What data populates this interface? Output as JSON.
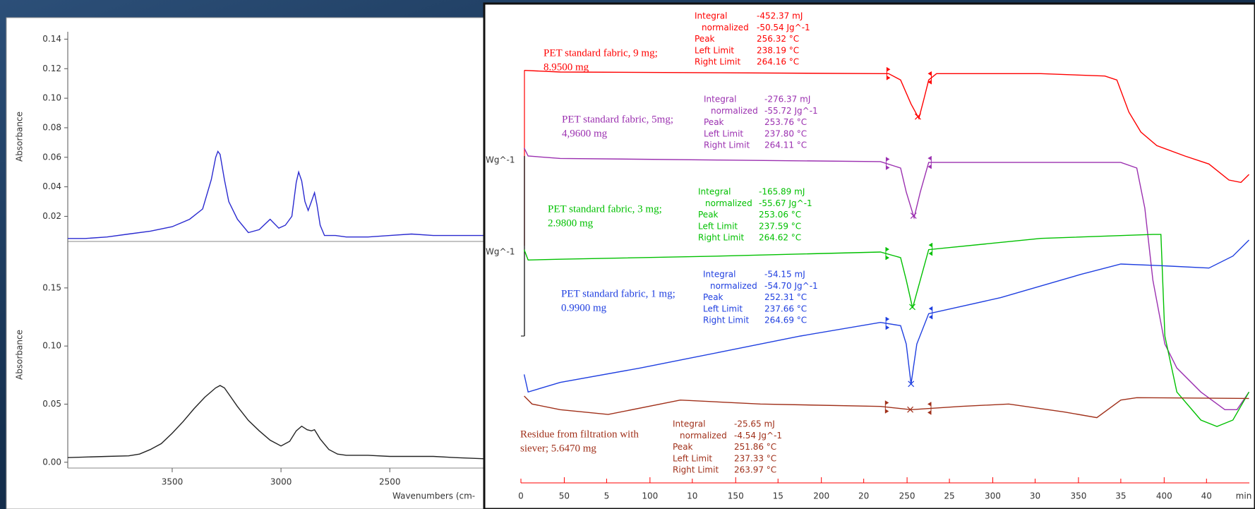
{
  "chart_data": [
    {
      "type": "line",
      "ylabel": "Absorbance",
      "xlim": [
        3980,
        2066
      ],
      "ylim": [
        0.003,
        0.145
      ],
      "yticks": [
        {
          "value": 0.02,
          "label": "0.02"
        },
        {
          "value": 0.04,
          "label": "0.04"
        },
        {
          "value": 0.06,
          "label": "0.06"
        },
        {
          "value": 0.08,
          "label": "0.08"
        },
        {
          "value": 0.1,
          "label": "0.10"
        },
        {
          "value": 0.12,
          "label": "0.12"
        },
        {
          "value": 0.14,
          "label": "0.14"
        }
      ],
      "x": [
        3980,
        3900,
        3800,
        3700,
        3600,
        3500,
        3420,
        3360,
        3320,
        3300,
        3290,
        3280,
        3260,
        3240,
        3200,
        3150,
        3100,
        3050,
        3010,
        2980,
        2950,
        2930,
        2919,
        2905,
        2890,
        2875,
        2860,
        2846,
        2835,
        2820,
        2800,
        2750,
        2700,
        2600,
        2500,
        2400,
        2300,
        2200,
        2066
      ],
      "series": [
        {
          "color": "#2a2ad0",
          "values": [
            0.005,
            0.005,
            0.006,
            0.008,
            0.01,
            0.013,
            0.018,
            0.025,
            0.045,
            0.06,
            0.064,
            0.062,
            0.045,
            0.03,
            0.018,
            0.009,
            0.011,
            0.018,
            0.012,
            0.014,
            0.02,
            0.043,
            0.05,
            0.044,
            0.03,
            0.024,
            0.03,
            0.036,
            0.028,
            0.014,
            0.007,
            0.007,
            0.006,
            0.006,
            0.007,
            0.008,
            0.007,
            0.007,
            0.007
          ]
        }
      ]
    },
    {
      "type": "line",
      "ylabel": "Absorbance",
      "xlabel": "Wavenumbers (cm-",
      "xlim": [
        3980,
        2066
      ],
      "ylim": [
        -0.005,
        0.19
      ],
      "xticks": [
        3500,
        3000,
        2500
      ],
      "yticks": [
        {
          "value": 0,
          "label": "0.00"
        },
        {
          "value": 0.05,
          "label": "0.05"
        },
        {
          "value": 0.1,
          "label": "0.10"
        },
        {
          "value": 0.15,
          "label": "0.15"
        }
      ],
      "x": [
        3980,
        3800,
        3700,
        3650,
        3600,
        3550,
        3500,
        3450,
        3400,
        3350,
        3300,
        3280,
        3260,
        3230,
        3200,
        3150,
        3100,
        3050,
        3000,
        2960,
        2930,
        2905,
        2880,
        2860,
        2846,
        2820,
        2780,
        2740,
        2700,
        2600,
        2500,
        2400,
        2300,
        2200,
        2066
      ],
      "series": [
        {
          "color": "#222222",
          "values": [
            0.004,
            0.005,
            0.0055,
            0.007,
            0.011,
            0.016,
            0.025,
            0.035,
            0.046,
            0.056,
            0.064,
            0.066,
            0.064,
            0.056,
            0.048,
            0.036,
            0.027,
            0.019,
            0.014,
            0.018,
            0.027,
            0.031,
            0.028,
            0.027,
            0.028,
            0.02,
            0.011,
            0.007,
            0.006,
            0.006,
            0.005,
            0.005,
            0.005,
            0.004,
            0.003
          ]
        }
      ]
    },
    {
      "type": "line",
      "xlabel": "min",
      "xlim": [
        0,
        42.5
      ],
      "xticks": [
        0,
        5,
        10,
        15,
        20,
        25,
        30,
        35,
        40
      ],
      "x2lim": [
        24.7,
        449.7
      ],
      "x2ticks": [
        50,
        100,
        150,
        200,
        250,
        300,
        350,
        400
      ],
      "x2color": "#ff0000",
      "ylim": [
        0,
        600
      ],
      "scale_labels": [
        "Wg^-1",
        "Wg^-1"
      ],
      "series": [
        {
          "color": "#ff0000",
          "label": [
            "PET standard fabric, 9 mg;",
            "8.9500 mg"
          ],
          "x": [
            0.19,
            2.29,
            11.64,
            20.98,
            21.45,
            22.15,
            22.76,
            23.22,
            23.5,
            23.79,
            24.25,
            30.33,
            34.07,
            34.77,
            35.47,
            36.17,
            37.1,
            38.74,
            40.14,
            41.31,
            42.01,
            42.48
          ],
          "values": [
            512,
            510,
            509,
            508,
            508,
            500,
            470,
            452,
            475,
            500,
            508,
            508,
            505,
            500,
            460,
            435,
            418,
            405,
            395,
            375,
            372,
            382
          ],
          "integration": {
            "labels": [
              "Integral",
              "normalized",
              "Peak",
              "Left Limit",
              "Right Limit"
            ],
            "values": [
              -452.37,
              -50.54,
              256.32,
              238.19,
              264.16
            ],
            "value_labels": [
              "-452.37 mJ",
              "-50.54 Jg^-1",
              "256.32 °C",
              "238.19 °C",
              "264.16 °C"
            ]
          }
        },
        {
          "color": "#9b30b0",
          "label": [
            "PET standard fabric, 5mg;",
            "4,9600 mg"
          ],
          "x": [
            0.19,
            0.42,
            2.29,
            11.64,
            20.98,
            22.15,
            22.48,
            22.94,
            23.3,
            23.79,
            30.33,
            35.0,
            35.93,
            36.4,
            36.87,
            37.57,
            38.27,
            39.67,
            41.07,
            41.78,
            42.48
          ],
          "values": [
            415,
            405,
            402,
            400,
            398,
            390,
            360,
            328,
            360,
            397,
            397,
            397,
            390,
            340,
            250,
            170,
            140,
            110,
            88,
            88,
            110
          ],
          "integration": {
            "labels": [
              "Integral",
              "normalized",
              "Peak",
              "Left Limit",
              "Right Limit"
            ],
            "values": [
              -276.37,
              -55.72,
              253.76,
              237.8,
              264.11
            ],
            "value_labels": [
              "-276.37 mJ",
              "-55.72 Jg^-1",
              "253.76 °C",
              "237.80 °C",
              "264.11 °C"
            ]
          }
        },
        {
          "color": "#00c000",
          "label": [
            "PET standard fabric, 3 mg;",
            "2.9800 mg"
          ],
          "x": [
            0.19,
            0.42,
            2.29,
            11.64,
            20.98,
            22.15,
            22.48,
            22.85,
            23.3,
            23.79,
            30.33,
            36.87,
            37.34,
            37.57,
            38.27,
            39.67,
            40.61,
            41.54,
            42.48
          ],
          "values": [
            288,
            275,
            276,
            280,
            285,
            278,
            250,
            215,
            250,
            288,
            302,
            307,
            307,
            180,
            110,
            75,
            67,
            75,
            110
          ],
          "integration": {
            "labels": [
              "Integral",
              "normalized",
              "Peak",
              "Left Limit",
              "Right Limit"
            ],
            "values": [
              -165.89,
              -55.67,
              253.06,
              237.59,
              264.62
            ],
            "value_labels": [
              "-165.89 mJ",
              "-55.67 Jg^-1",
              "253.06 °C",
              "237.59 °C",
              "264.62 °C"
            ]
          }
        },
        {
          "color": "#1f3fe0",
          "label": [
            "PET standard fabric, 1 mg;",
            "0.9900 mg"
          ],
          "x": [
            0.19,
            0.42,
            2.29,
            6.96,
            11.64,
            16.31,
            20.98,
            22.15,
            22.48,
            22.76,
            23.1,
            23.79,
            27.99,
            32.66,
            35.0,
            37.34,
            40.14,
            41.54,
            42.48
          ],
          "values": [
            132,
            110,
            122,
            140,
            160,
            180,
            197,
            193,
            170,
            120,
            170,
            208,
            228,
            257,
            270,
            268,
            265,
            280,
            300
          ],
          "integration": {
            "labels": [
              "Integral",
              "normalized",
              "Peak",
              "Left Limit",
              "Right Limit"
            ],
            "values": [
              -54.15,
              -54.7,
              252.31,
              237.66,
              264.69
            ],
            "value_labels": [
              "-54.15 mJ",
              "-54.70 Jg^-1",
              "252.31 °C",
              "237.66 °C",
              "264.69 °C"
            ]
          }
        },
        {
          "color": "#a0301a",
          "label": [
            "Residue from filtration with",
            "siever; 5.6470 mg"
          ],
          "x": [
            0.19,
            0.65,
            2.29,
            5.09,
            9.3,
            13.97,
            20.98,
            22.76,
            25.65,
            28.46,
            31.73,
            33.6,
            35.0,
            35.93,
            42.48
          ],
          "values": [
            105,
            95,
            88,
            82,
            100,
            95,
            92,
            88,
            92,
            95,
            85,
            78,
            100,
            103,
            102
          ],
          "integration": {
            "labels": [
              "Integral",
              "normalized",
              "Peak",
              "Left Limit",
              "Right Limit"
            ],
            "values": [
              -25.65,
              -4.54,
              251.86,
              237.33,
              263.97
            ],
            "value_labels": [
              "-25.65 mJ",
              "-4.54 Jg^-1",
              "251.86 °C",
              "237.33 °C",
              "263.97 °C"
            ]
          }
        }
      ]
    }
  ]
}
